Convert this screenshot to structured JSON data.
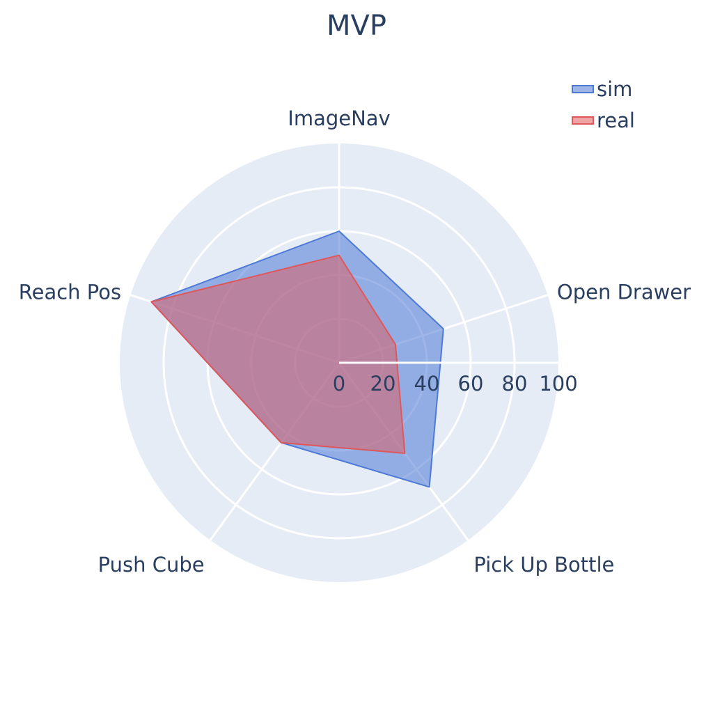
{
  "chart_data": {
    "type": "radar",
    "title": "MVP",
    "categories": [
      "ImageNav",
      "Open Drawer",
      "Pick Up Bottle",
      "Push Cube",
      "Reach Pos"
    ],
    "radial_range": [
      0,
      100
    ],
    "radial_ticks": [
      0,
      20,
      40,
      60,
      80,
      100
    ],
    "radial_tick_labels": [
      "0",
      "20",
      "40",
      "60",
      "80",
      "100"
    ],
    "grid": true,
    "legend_position": "top-right",
    "series": [
      {
        "name": "sim",
        "values": [
          60,
          50,
          70,
          45,
          90
        ],
        "color": "#4f79d6"
      },
      {
        "name": "real",
        "values": [
          49,
          27,
          51,
          45,
          90
        ],
        "color": "#e0575a"
      }
    ]
  },
  "colors": {
    "plot_bg": "#e5ecf6",
    "grid": "#ffffff",
    "text": "#2a3f5f"
  }
}
